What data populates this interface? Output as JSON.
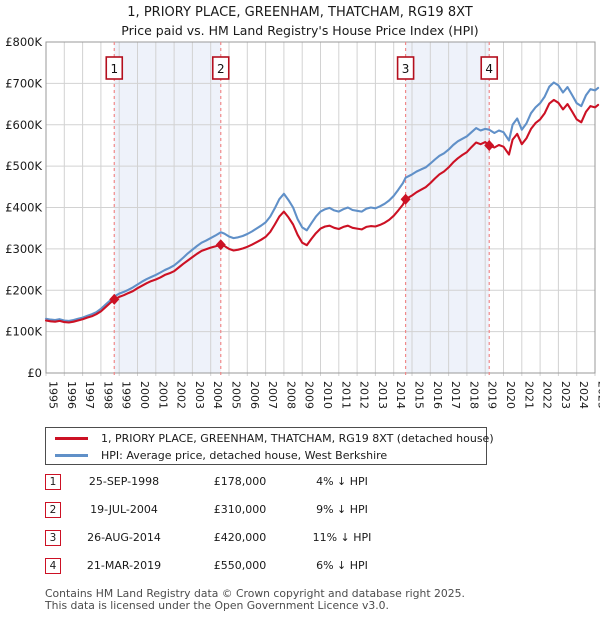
{
  "title": {
    "line1": "1, PRIORY PLACE, GREENHAM, THATCHAM, RG19 8XT",
    "line2": "Price paid vs. HM Land Registry's House Price Index (HPI)"
  },
  "chart_data": {
    "type": "line",
    "units": "GBP thousands",
    "x_axis": {
      "ticks": [
        1995,
        1996,
        1997,
        1998,
        1999,
        2000,
        2001,
        2002,
        2003,
        2004,
        2005,
        2006,
        2007,
        2008,
        2009,
        2010,
        2011,
        2012,
        2013,
        2014,
        2015,
        2016,
        2017,
        2018,
        2019,
        2020,
        2021,
        2022,
        2023,
        2024,
        2025
      ],
      "range": [
        1995,
        2025
      ]
    },
    "y_axis": {
      "tick_labels": [
        "£0",
        "£100K",
        "£200K",
        "£300K",
        "£400K",
        "£500K",
        "£600K",
        "£700K",
        "£800K"
      ],
      "ylim": [
        0,
        800000
      ],
      "grid": true
    },
    "colors": {
      "property": "#cc1124",
      "hpi": "#6090c8",
      "band": "#eef2fa",
      "dashed": "#f08989",
      "grid": "#d2d2d2",
      "border": "#999999",
      "marker_box_border": "#b40f1e"
    },
    "series": [
      {
        "name": "1, PRIORY PLACE, GREENHAM, THATCHAM, RG19 8XT (detached house)",
        "color": "#cc1124",
        "points": [
          [
            1995.0,
            127
          ],
          [
            1995.25,
            125
          ],
          [
            1995.5,
            124
          ],
          [
            1995.75,
            126
          ],
          [
            1996.0,
            123
          ],
          [
            1996.25,
            122
          ],
          [
            1996.5,
            124
          ],
          [
            1996.75,
            127
          ],
          [
            1997.0,
            130
          ],
          [
            1997.25,
            134
          ],
          [
            1997.5,
            137
          ],
          [
            1997.75,
            142
          ],
          [
            1998.0,
            149
          ],
          [
            1998.25,
            159
          ],
          [
            1998.5,
            169
          ],
          [
            1998.73,
            178
          ],
          [
            1999.0,
            184
          ],
          [
            1999.25,
            188
          ],
          [
            1999.5,
            193
          ],
          [
            1999.75,
            198
          ],
          [
            2000.0,
            205
          ],
          [
            2000.25,
            211
          ],
          [
            2000.5,
            217
          ],
          [
            2000.75,
            222
          ],
          [
            2001.0,
            226
          ],
          [
            2001.25,
            231
          ],
          [
            2001.5,
            237
          ],
          [
            2001.75,
            241
          ],
          [
            2002.0,
            246
          ],
          [
            2002.25,
            255
          ],
          [
            2002.5,
            264
          ],
          [
            2002.75,
            272
          ],
          [
            2003.0,
            280
          ],
          [
            2003.25,
            288
          ],
          [
            2003.5,
            295
          ],
          [
            2003.75,
            299
          ],
          [
            2004.0,
            303
          ],
          [
            2004.25,
            306
          ],
          [
            2004.55,
            310
          ],
          [
            2004.75,
            307
          ],
          [
            2005.0,
            300
          ],
          [
            2005.25,
            296
          ],
          [
            2005.5,
            298
          ],
          [
            2005.75,
            301
          ],
          [
            2006.0,
            305
          ],
          [
            2006.25,
            310
          ],
          [
            2006.5,
            316
          ],
          [
            2006.75,
            322
          ],
          [
            2007.0,
            329
          ],
          [
            2007.25,
            341
          ],
          [
            2007.5,
            359
          ],
          [
            2007.75,
            378
          ],
          [
            2008.0,
            390
          ],
          [
            2008.25,
            376
          ],
          [
            2008.5,
            359
          ],
          [
            2008.75,
            334
          ],
          [
            2009.0,
            315
          ],
          [
            2009.25,
            309
          ],
          [
            2009.5,
            324
          ],
          [
            2009.75,
            338
          ],
          [
            2010.0,
            349
          ],
          [
            2010.25,
            354
          ],
          [
            2010.5,
            356
          ],
          [
            2010.75,
            351
          ],
          [
            2011.0,
            348
          ],
          [
            2011.25,
            353
          ],
          [
            2011.5,
            356
          ],
          [
            2011.75,
            351
          ],
          [
            2012.0,
            349
          ],
          [
            2012.25,
            347
          ],
          [
            2012.5,
            353
          ],
          [
            2012.75,
            355
          ],
          [
            2013.0,
            354
          ],
          [
            2013.25,
            358
          ],
          [
            2013.5,
            363
          ],
          [
            2013.75,
            370
          ],
          [
            2014.0,
            380
          ],
          [
            2014.25,
            393
          ],
          [
            2014.5,
            407
          ],
          [
            2014.65,
            420
          ],
          [
            2015.0,
            429
          ],
          [
            2015.25,
            437
          ],
          [
            2015.5,
            443
          ],
          [
            2015.75,
            449
          ],
          [
            2016.0,
            459
          ],
          [
            2016.25,
            470
          ],
          [
            2016.5,
            480
          ],
          [
            2016.75,
            487
          ],
          [
            2017.0,
            497
          ],
          [
            2017.25,
            509
          ],
          [
            2017.5,
            519
          ],
          [
            2017.75,
            527
          ],
          [
            2018.0,
            534
          ],
          [
            2018.25,
            546
          ],
          [
            2018.5,
            557
          ],
          [
            2018.75,
            553
          ],
          [
            2019.0,
            558
          ],
          [
            2019.22,
            550
          ],
          [
            2019.5,
            545
          ],
          [
            2019.75,
            551
          ],
          [
            2020.0,
            547
          ],
          [
            2020.3,
            528
          ],
          [
            2020.5,
            564
          ],
          [
            2020.75,
            578
          ],
          [
            2021.0,
            553
          ],
          [
            2021.25,
            567
          ],
          [
            2021.5,
            590
          ],
          [
            2021.75,
            604
          ],
          [
            2022.0,
            613
          ],
          [
            2022.25,
            628
          ],
          [
            2022.5,
            651
          ],
          [
            2022.75,
            660
          ],
          [
            2023.0,
            653
          ],
          [
            2023.25,
            637
          ],
          [
            2023.5,
            650
          ],
          [
            2023.75,
            632
          ],
          [
            2024.0,
            613
          ],
          [
            2024.25,
            606
          ],
          [
            2024.5,
            631
          ],
          [
            2024.75,
            645
          ],
          [
            2025.0,
            642
          ],
          [
            2025.17,
            648
          ]
        ]
      },
      {
        "name": "HPI: Average price, detached house, West Berkshire",
        "color": "#6090c8",
        "points": [
          [
            1995.0,
            131
          ],
          [
            1995.25,
            129
          ],
          [
            1995.5,
            128
          ],
          [
            1995.75,
            130
          ],
          [
            1996.0,
            127
          ],
          [
            1996.25,
            126
          ],
          [
            1996.5,
            128
          ],
          [
            1996.75,
            131
          ],
          [
            1997.0,
            134
          ],
          [
            1997.25,
            138
          ],
          [
            1997.5,
            142
          ],
          [
            1997.75,
            147
          ],
          [
            1998.0,
            155
          ],
          [
            1998.25,
            165
          ],
          [
            1998.5,
            175
          ],
          [
            1998.73,
            185
          ],
          [
            1999.0,
            192
          ],
          [
            1999.25,
            196
          ],
          [
            1999.5,
            201
          ],
          [
            1999.75,
            207
          ],
          [
            2000.0,
            214
          ],
          [
            2000.25,
            221
          ],
          [
            2000.5,
            227
          ],
          [
            2000.75,
            232
          ],
          [
            2001.0,
            237
          ],
          [
            2001.25,
            243
          ],
          [
            2001.5,
            249
          ],
          [
            2001.75,
            254
          ],
          [
            2002.0,
            260
          ],
          [
            2002.25,
            269
          ],
          [
            2002.5,
            279
          ],
          [
            2002.75,
            289
          ],
          [
            2003.0,
            298
          ],
          [
            2003.25,
            307
          ],
          [
            2003.5,
            315
          ],
          [
            2003.75,
            320
          ],
          [
            2004.0,
            326
          ],
          [
            2004.25,
            332
          ],
          [
            2004.55,
            340
          ],
          [
            2004.75,
            337
          ],
          [
            2005.0,
            330
          ],
          [
            2005.25,
            326
          ],
          [
            2005.5,
            328
          ],
          [
            2005.75,
            331
          ],
          [
            2006.0,
            336
          ],
          [
            2006.25,
            342
          ],
          [
            2006.5,
            349
          ],
          [
            2006.75,
            356
          ],
          [
            2007.0,
            364
          ],
          [
            2007.25,
            378
          ],
          [
            2007.5,
            398
          ],
          [
            2007.75,
            420
          ],
          [
            2008.0,
            433
          ],
          [
            2008.25,
            418
          ],
          [
            2008.5,
            400
          ],
          [
            2008.75,
            372
          ],
          [
            2009.0,
            352
          ],
          [
            2009.25,
            345
          ],
          [
            2009.5,
            362
          ],
          [
            2009.75,
            378
          ],
          [
            2010.0,
            390
          ],
          [
            2010.25,
            396
          ],
          [
            2010.5,
            399
          ],
          [
            2010.75,
            393
          ],
          [
            2011.0,
            390
          ],
          [
            2011.25,
            396
          ],
          [
            2011.5,
            400
          ],
          [
            2011.75,
            394
          ],
          [
            2012.0,
            392
          ],
          [
            2012.25,
            390
          ],
          [
            2012.5,
            397
          ],
          [
            2012.75,
            400
          ],
          [
            2013.0,
            398
          ],
          [
            2013.25,
            403
          ],
          [
            2013.5,
            409
          ],
          [
            2013.75,
            417
          ],
          [
            2014.0,
            428
          ],
          [
            2014.25,
            443
          ],
          [
            2014.5,
            459
          ],
          [
            2014.65,
            472
          ],
          [
            2015.0,
            480
          ],
          [
            2015.25,
            487
          ],
          [
            2015.5,
            492
          ],
          [
            2015.75,
            497
          ],
          [
            2016.0,
            506
          ],
          [
            2016.25,
            516
          ],
          [
            2016.5,
            525
          ],
          [
            2016.75,
            531
          ],
          [
            2017.0,
            540
          ],
          [
            2017.25,
            551
          ],
          [
            2017.5,
            560
          ],
          [
            2017.75,
            566
          ],
          [
            2018.0,
            572
          ],
          [
            2018.25,
            582
          ],
          [
            2018.5,
            592
          ],
          [
            2018.75,
            586
          ],
          [
            2019.0,
            590
          ],
          [
            2019.22,
            588
          ],
          [
            2019.5,
            580
          ],
          [
            2019.75,
            586
          ],
          [
            2020.0,
            582
          ],
          [
            2020.3,
            562
          ],
          [
            2020.5,
            600
          ],
          [
            2020.75,
            615
          ],
          [
            2021.0,
            588
          ],
          [
            2021.25,
            603
          ],
          [
            2021.5,
            628
          ],
          [
            2021.75,
            642
          ],
          [
            2022.0,
            652
          ],
          [
            2022.25,
            668
          ],
          [
            2022.5,
            692
          ],
          [
            2022.75,
            702
          ],
          [
            2023.0,
            695
          ],
          [
            2023.25,
            678
          ],
          [
            2023.5,
            691
          ],
          [
            2023.75,
            672
          ],
          [
            2024.0,
            652
          ],
          [
            2024.25,
            645
          ],
          [
            2024.5,
            671
          ],
          [
            2024.75,
            686
          ],
          [
            2025.0,
            683
          ],
          [
            2025.17,
            689
          ]
        ]
      }
    ],
    "sales": [
      {
        "label": "1",
        "year": 1998.73,
        "price_gbp": 178000
      },
      {
        "label": "2",
        "year": 2004.55,
        "price_gbp": 310000
      },
      {
        "label": "3",
        "year": 2014.65,
        "price_gbp": 420000
      },
      {
        "label": "4",
        "year": 2019.22,
        "price_gbp": 550000
      }
    ],
    "sale_bands": [
      [
        1998.73,
        2004.55
      ],
      [
        2014.65,
        2019.22
      ]
    ],
    "legend_position": "below"
  },
  "transactions": [
    {
      "num": "1",
      "date": "25-SEP-1998",
      "price": "£178,000",
      "vs_hpi": "4% ↓ HPI"
    },
    {
      "num": "2",
      "date": "19-JUL-2004",
      "price": "£310,000",
      "vs_hpi": "9% ↓ HPI"
    },
    {
      "num": "3",
      "date": "26-AUG-2014",
      "price": "£420,000",
      "vs_hpi": "11% ↓ HPI"
    },
    {
      "num": "4",
      "date": "21-MAR-2019",
      "price": "£550,000",
      "vs_hpi": "6% ↓ HPI"
    }
  ],
  "footer": {
    "line1": "Contains HM Land Registry data © Crown copyright and database right 2025.",
    "line2": "This data is licensed under the Open Government Licence v3.0."
  }
}
